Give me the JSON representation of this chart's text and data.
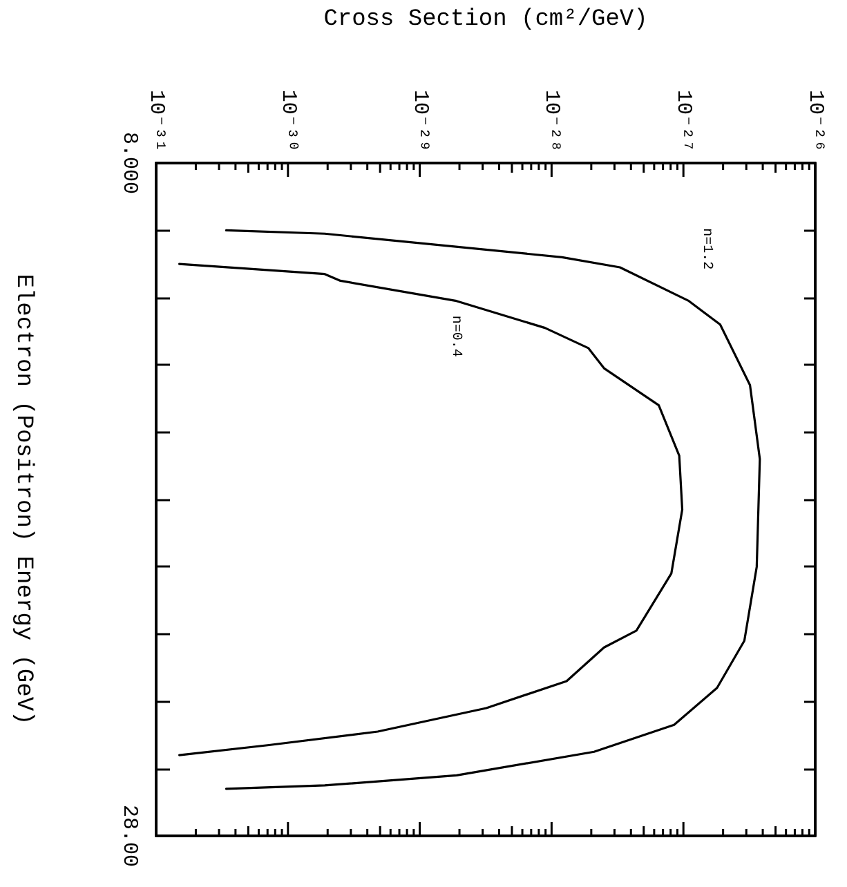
{
  "chart_data": {
    "type": "line",
    "orientation": "horizontal",
    "log": "x",
    "xlabel": "Cross Section (cm²/GeV)",
    "ylabel": "Electron (Positron) Energy (GeV)",
    "xlim": [
      1e-31,
      1e-26
    ],
    "xticks": [
      {
        "value": 1e-31,
        "label": "10⁻³¹"
      },
      {
        "value": 1e-30,
        "label": "10⁻³⁰"
      },
      {
        "value": 1e-29,
        "label": "10⁻²⁹"
      },
      {
        "value": 1e-28,
        "label": "10⁻²⁸"
      },
      {
        "value": 1e-27,
        "label": "10⁻²⁷"
      },
      {
        "value": 1e-26,
        "label": "10⁻²⁶"
      }
    ],
    "ylim": [
      28,
      8
    ],
    "yticks": [
      {
        "value": 8,
        "label": "8.000"
      },
      {
        "value": 10,
        "label": null
      },
      {
        "value": 12,
        "label": null
      },
      {
        "value": 14,
        "label": null
      },
      {
        "value": 16,
        "label": null
      },
      {
        "value": 18,
        "label": null
      },
      {
        "value": 20,
        "label": null
      },
      {
        "value": 22,
        "label": null
      },
      {
        "value": 24,
        "label": null
      },
      {
        "value": 26,
        "label": null
      },
      {
        "value": 28,
        "label": "28.00"
      }
    ],
    "grid": false,
    "marker": "none",
    "line_style": "solid",
    "legend": false,
    "series": [
      {
        "name": "n=1.2",
        "color": "#000000",
        "x": [
          10.0,
          10.1,
          10.8,
          11.1,
          12.1,
          12.8,
          14.6,
          16.8,
          20.0,
          22.2,
          23.6,
          24.7,
          25.5,
          26.2,
          26.5,
          26.6
        ],
        "values": [
          3.4e-31,
          1.9e-30,
          1.2e-28,
          3.3e-28,
          1.1e-27,
          1.9e-27,
          3.2e-27,
          3.8e-27,
          3.6e-27,
          2.9e-27,
          1.8e-27,
          8.5e-28,
          2.1e-28,
          1.9e-29,
          1.9e-30,
          3.4e-31
        ]
      },
      {
        "name": "n=0.4",
        "color": "#000000",
        "x": [
          11.0,
          11.3,
          11.5,
          12.1,
          12.9,
          13.5,
          14.1,
          15.2,
          16.7,
          18.3,
          20.2,
          21.9,
          22.4,
          23.4,
          24.2,
          24.9,
          25.3,
          25.6
        ],
        "values": [
          1.5e-31,
          1.9e-30,
          2.5e-30,
          1.9e-29,
          8.9e-29,
          1.9e-28,
          2.5e-28,
          6.5e-28,
          9.3e-28,
          9.8e-28,
          8.1e-28,
          4.4e-28,
          2.5e-28,
          1.3e-28,
          3.2e-29,
          4.8e-30,
          7.2e-31,
          1.5e-31
        ]
      }
    ]
  }
}
